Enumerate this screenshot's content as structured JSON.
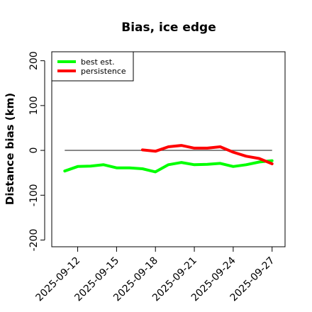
{
  "chart_data": {
    "type": "line",
    "title": "Bias, ice edge",
    "xlabel": "",
    "ylabel": "Distance bias (km)",
    "ylim": [
      -215,
      220
    ],
    "xlim": [
      "2025-09-10",
      "2025-09-28"
    ],
    "yticks": [
      200,
      100,
      0,
      -100,
      -200
    ],
    "yticklabels": [
      "200",
      "100",
      "0",
      "-100",
      "-200"
    ],
    "xticks": [
      "2025-09-12",
      "2025-09-15",
      "2025-09-18",
      "2025-09-21",
      "2025-09-24",
      "2025-09-27"
    ],
    "reference_line": {
      "y": 0,
      "from": "2025-09-11",
      "to": "2025-09-27",
      "color": "#555555"
    },
    "legend_position": "top-left",
    "grid": false,
    "series": [
      {
        "name": "best est.",
        "color": "#00ff00",
        "x": [
          "2025-09-11",
          "2025-09-12",
          "2025-09-13",
          "2025-09-14",
          "2025-09-15",
          "2025-09-16",
          "2025-09-17",
          "2025-09-18",
          "2025-09-19",
          "2025-09-20",
          "2025-09-21",
          "2025-09-22",
          "2025-09-23",
          "2025-09-24",
          "2025-09-25",
          "2025-09-26",
          "2025-09-27"
        ],
        "y": [
          -46,
          -36,
          -35,
          -32,
          -39,
          -39,
          -41,
          -48,
          -32,
          -27,
          -32,
          -31,
          -29,
          -36,
          -32,
          -26,
          -23
        ]
      },
      {
        "name": "persistence",
        "color": "#ff0000",
        "x": [
          "2025-09-17",
          "2025-09-18",
          "2025-09-19",
          "2025-09-20",
          "2025-09-21",
          "2025-09-22",
          "2025-09-23",
          "2025-09-24",
          "2025-09-25",
          "2025-09-26",
          "2025-09-27"
        ],
        "y": [
          1,
          -2,
          8,
          11,
          5,
          5,
          8,
          -4,
          -13,
          -18,
          -30
        ]
      }
    ]
  }
}
